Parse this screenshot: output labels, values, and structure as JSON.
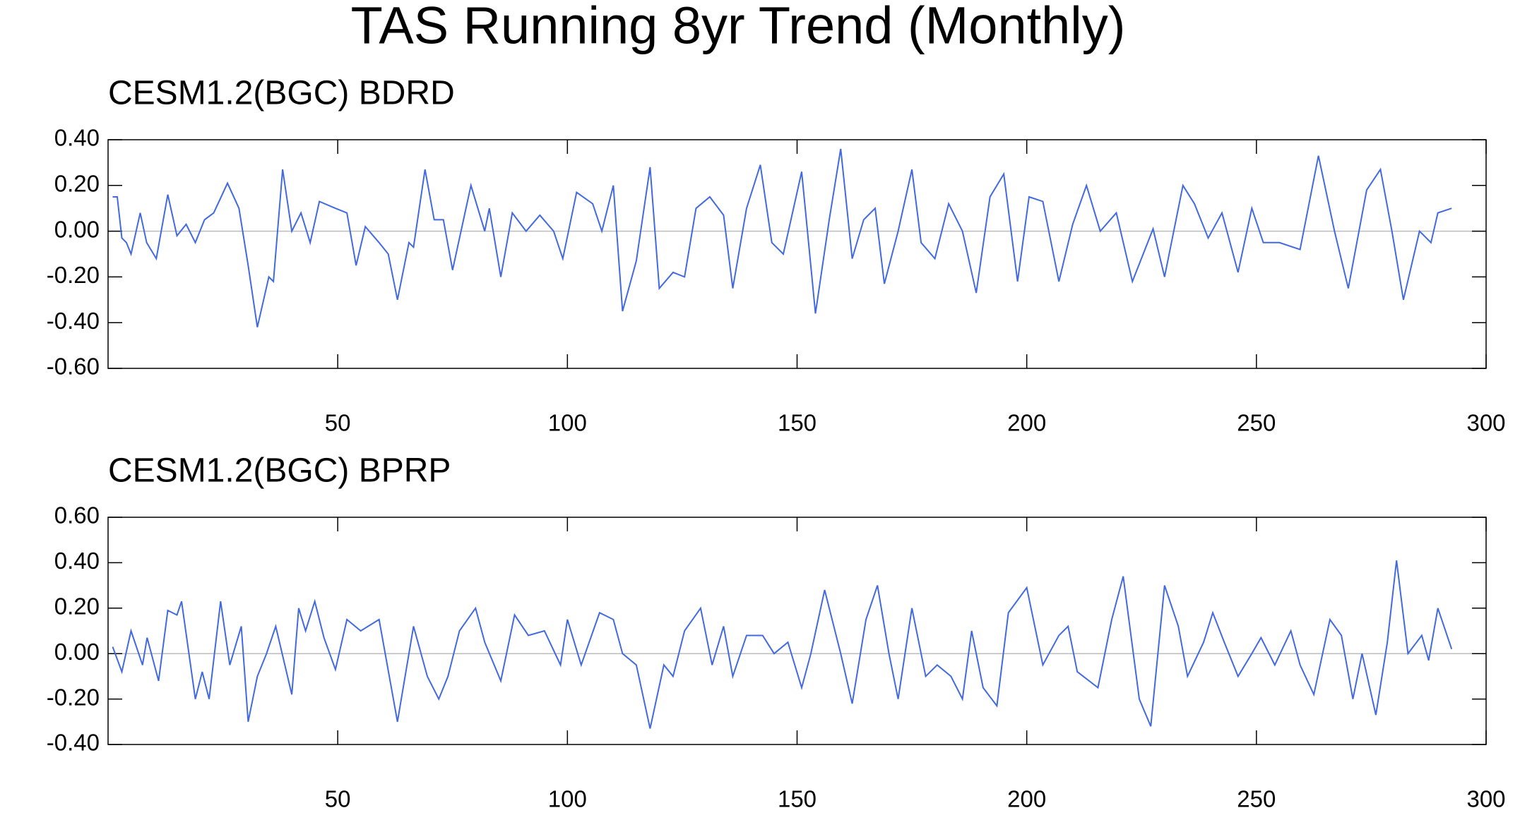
{
  "title": "TAS Running 8yr Trend (Monthly)",
  "chart_data": [
    {
      "type": "line",
      "title": "CESM1.2(BGC) BDRD",
      "color": "#4169e1",
      "xlim": [
        0,
        300
      ],
      "xticks": [
        50,
        100,
        150,
        200,
        250,
        300
      ],
      "ylim": [
        -0.6,
        0.4
      ],
      "yticks": [
        {
          "value": -0.6,
          "label": "-0.60"
        },
        {
          "value": -0.4,
          "label": "-0.40"
        },
        {
          "value": -0.2,
          "label": "-0.20"
        },
        {
          "value": 0,
          "label": "0.00"
        },
        {
          "value": 0.2,
          "label": "0.20"
        },
        {
          "value": 0.4,
          "label": "0.40"
        }
      ],
      "ref_line": 0,
      "x": [
        1,
        2,
        3,
        4,
        5,
        7,
        8.4,
        10.5,
        13,
        15,
        17,
        19,
        21,
        23,
        26,
        28.5,
        30.5,
        32.5,
        35,
        36,
        38,
        40,
        42,
        44,
        46,
        49.5,
        52,
        54,
        56,
        59,
        61,
        63,
        65.5,
        66.5,
        69,
        71,
        73,
        75,
        79,
        82,
        83,
        85.5,
        88,
        91,
        94,
        97,
        99,
        102,
        105.5,
        107.5,
        110,
        112,
        115,
        118,
        120,
        123,
        125.5,
        128,
        131,
        134,
        136,
        139,
        142,
        144.5,
        147,
        151,
        154,
        157,
        159.5,
        162,
        164.5,
        167,
        169,
        172,
        175,
        177,
        180,
        183,
        186,
        189,
        192,
        195,
        198,
        200.5,
        203.5,
        207,
        210,
        213,
        216,
        219.5,
        223,
        227.5,
        230,
        234,
        236.5,
        239.5,
        242.5,
        246,
        249,
        251.5,
        255,
        259.5,
        263.5,
        267,
        270,
        274,
        277,
        279.5,
        282,
        285.5,
        288,
        289.5,
        292.5
      ],
      "values": [
        0.15,
        0.15,
        -0.03,
        -0.05,
        -0.1,
        0.08,
        -0.05,
        -0.12,
        0.16,
        -0.02,
        0.03,
        -0.05,
        0.05,
        0.08,
        0.21,
        0.1,
        -0.15,
        -0.42,
        -0.2,
        -0.22,
        0.27,
        0,
        0.08,
        -0.05,
        0.13,
        0.1,
        0.08,
        -0.15,
        0.02,
        -0.05,
        -0.1,
        -0.3,
        -0.05,
        -0.07,
        0.27,
        0.05,
        0.05,
        -0.17,
        0.2,
        0,
        0.1,
        -0.2,
        0.08,
        0,
        0.07,
        0,
        -0.12,
        0.17,
        0.12,
        0,
        0.2,
        -0.35,
        -0.13,
        0.28,
        -0.25,
        -0.18,
        -0.2,
        0.1,
        0.15,
        0.07,
        -0.25,
        0.1,
        0.29,
        -0.05,
        -0.1,
        0.26,
        -0.36,
        0.05,
        0.36,
        -0.12,
        0.05,
        0.1,
        -0.23,
        0,
        0.27,
        -0.05,
        -0.12,
        0.12,
        0,
        -0.27,
        0.15,
        0.25,
        -0.22,
        0.15,
        0.13,
        -0.22,
        0.03,
        0.2,
        0,
        0.08,
        -0.22,
        0.01,
        -0.2,
        0.2,
        0.12,
        -0.03,
        0.08,
        -0.18,
        0.1,
        -0.05,
        -0.05,
        -0.08,
        0.33,
        0,
        -0.25,
        0.18,
        0.27,
        0,
        -0.3,
        0,
        -0.05,
        0.08,
        0.1
      ]
    },
    {
      "type": "line",
      "title": "CESM1.2(BGC) BPRP",
      "color": "#4169e1",
      "xlim": [
        0,
        300
      ],
      "xticks": [
        50,
        100,
        150,
        200,
        250,
        300
      ],
      "ylim": [
        -0.4,
        0.6
      ],
      "yticks": [
        {
          "value": -0.4,
          "label": "-0.40"
        },
        {
          "value": -0.2,
          "label": "-0.20"
        },
        {
          "value": 0,
          "label": "0.00"
        },
        {
          "value": 0.2,
          "label": "0.20"
        },
        {
          "value": 0.4,
          "label": "0.40"
        },
        {
          "value": 0.6,
          "label": "0.60"
        }
      ],
      "ref_line": 0,
      "x": [
        1,
        3,
        5,
        7.5,
        8.5,
        11,
        13,
        15,
        16,
        19,
        20.5,
        22,
        24.5,
        26.5,
        29,
        30.5,
        32.5,
        34.5,
        36.5,
        40,
        41.5,
        43,
        45,
        47,
        49.5,
        52,
        55,
        59,
        63,
        66.5,
        69.5,
        72,
        74,
        76.5,
        80,
        82,
        85.5,
        88.5,
        91.5,
        95,
        98.5,
        100,
        103,
        107,
        110,
        112,
        115,
        118,
        121,
        123,
        125.5,
        129,
        131.5,
        134,
        136,
        139,
        142.5,
        145,
        148,
        151,
        153,
        156,
        159.5,
        162,
        165,
        167.5,
        170,
        172,
        175,
        178,
        180.5,
        183.5,
        186,
        188,
        190.5,
        193.5,
        196,
        200,
        203.5,
        207,
        209,
        211,
        215.5,
        218.5,
        221,
        224.5,
        227,
        230,
        233,
        235,
        238.5,
        240.5,
        243,
        246,
        249,
        251,
        254,
        257.5,
        259.5,
        262.5,
        266,
        268.5,
        271,
        273,
        276,
        278.5,
        280.5,
        283,
        286,
        287.5,
        289.5,
        292.5
      ],
      "values": [
        0.03,
        -0.08,
        0.1,
        -0.05,
        0.07,
        -0.12,
        0.19,
        0.17,
        0.23,
        -0.2,
        -0.08,
        -0.2,
        0.23,
        -0.05,
        0.12,
        -0.3,
        -0.1,
        0,
        0.12,
        -0.18,
        0.2,
        0.1,
        0.23,
        0.07,
        -0.07,
        0.15,
        0.1,
        0.15,
        -0.3,
        0.12,
        -0.1,
        -0.2,
        -0.1,
        0.1,
        0.2,
        0.05,
        -0.12,
        0.17,
        0.08,
        0.1,
        -0.05,
        0.15,
        -0.05,
        0.18,
        0.15,
        0,
        -0.05,
        -0.33,
        -0.05,
        -0.1,
        0.1,
        0.2,
        -0.05,
        0.12,
        -0.1,
        0.08,
        0.08,
        0,
        0.05,
        -0.15,
        0,
        0.28,
        0,
        -0.22,
        0.15,
        0.3,
        0,
        -0.2,
        0.2,
        -0.1,
        -0.05,
        -0.1,
        -0.2,
        0.1,
        -0.15,
        -0.23,
        0.18,
        0.29,
        -0.05,
        0.08,
        0.12,
        -0.08,
        -0.15,
        0.15,
        0.34,
        -0.2,
        -0.32,
        0.3,
        0.12,
        -0.1,
        0.05,
        0.18,
        0.05,
        -0.1,
        0,
        0.07,
        -0.05,
        0.1,
        -0.05,
        -0.18,
        0.15,
        0.08,
        -0.2,
        0,
        -0.27,
        0.05,
        0.41,
        0,
        0.08,
        -0.03,
        0.2,
        0.02
      ]
    }
  ]
}
